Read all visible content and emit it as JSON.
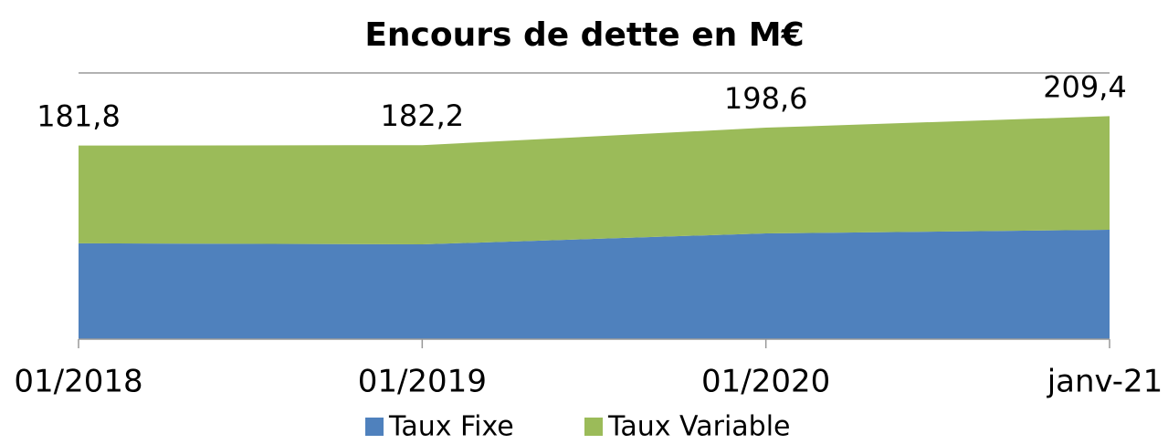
{
  "chart_data": {
    "type": "stacked_area",
    "title": "Encours de dette en M€",
    "categories": [
      "01/2018",
      "01/2019",
      "01/2020",
      "janv-21"
    ],
    "series": [
      {
        "name": "Taux Fixe",
        "color": "#4f81bd",
        "values": [
          90,
          89,
          99.3,
          102.7
        ]
      },
      {
        "name": "Taux Variable",
        "color": "#9bbb59",
        "values": [
          91.8,
          93.2,
          99.3,
          106.7
        ]
      }
    ],
    "totals": [
      181.8,
      182.2,
      198.6,
      209.4
    ],
    "total_labels": [
      "181,8",
      "182,2",
      "198,6",
      "209,4"
    ],
    "ylim": [
      0,
      250
    ]
  }
}
